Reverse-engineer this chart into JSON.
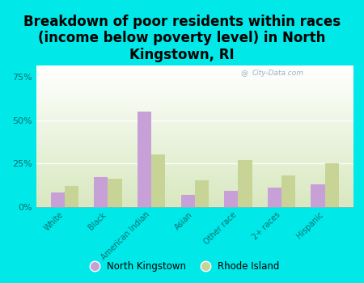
{
  "title": "Breakdown of poor residents within races\n(income below poverty level) in North\nKingstown, RI",
  "categories": [
    "White",
    "Black",
    "American Indian",
    "Asian",
    "Other race",
    "2+ races",
    "Hispanic"
  ],
  "north_kingstown": [
    8,
    17,
    55,
    7,
    9,
    11,
    13
  ],
  "rhode_island": [
    12,
    16,
    30,
    15,
    27,
    18,
    25
  ],
  "nk_color": "#c8a0d8",
  "ri_color": "#c8d496",
  "bg_color": "#00e8e8",
  "plot_bg_top": "#ffffff",
  "plot_bg_bottom": "#d8e8c0",
  "watermark": "City-Data.com",
  "ylabel_ticks": [
    0,
    25,
    50,
    75
  ],
  "ylim": [
    0,
    82
  ],
  "bar_width": 0.32,
  "title_fontsize": 12,
  "tick_color": "#007070",
  "legend_labels": [
    "North Kingstown",
    "Rhode Island"
  ]
}
